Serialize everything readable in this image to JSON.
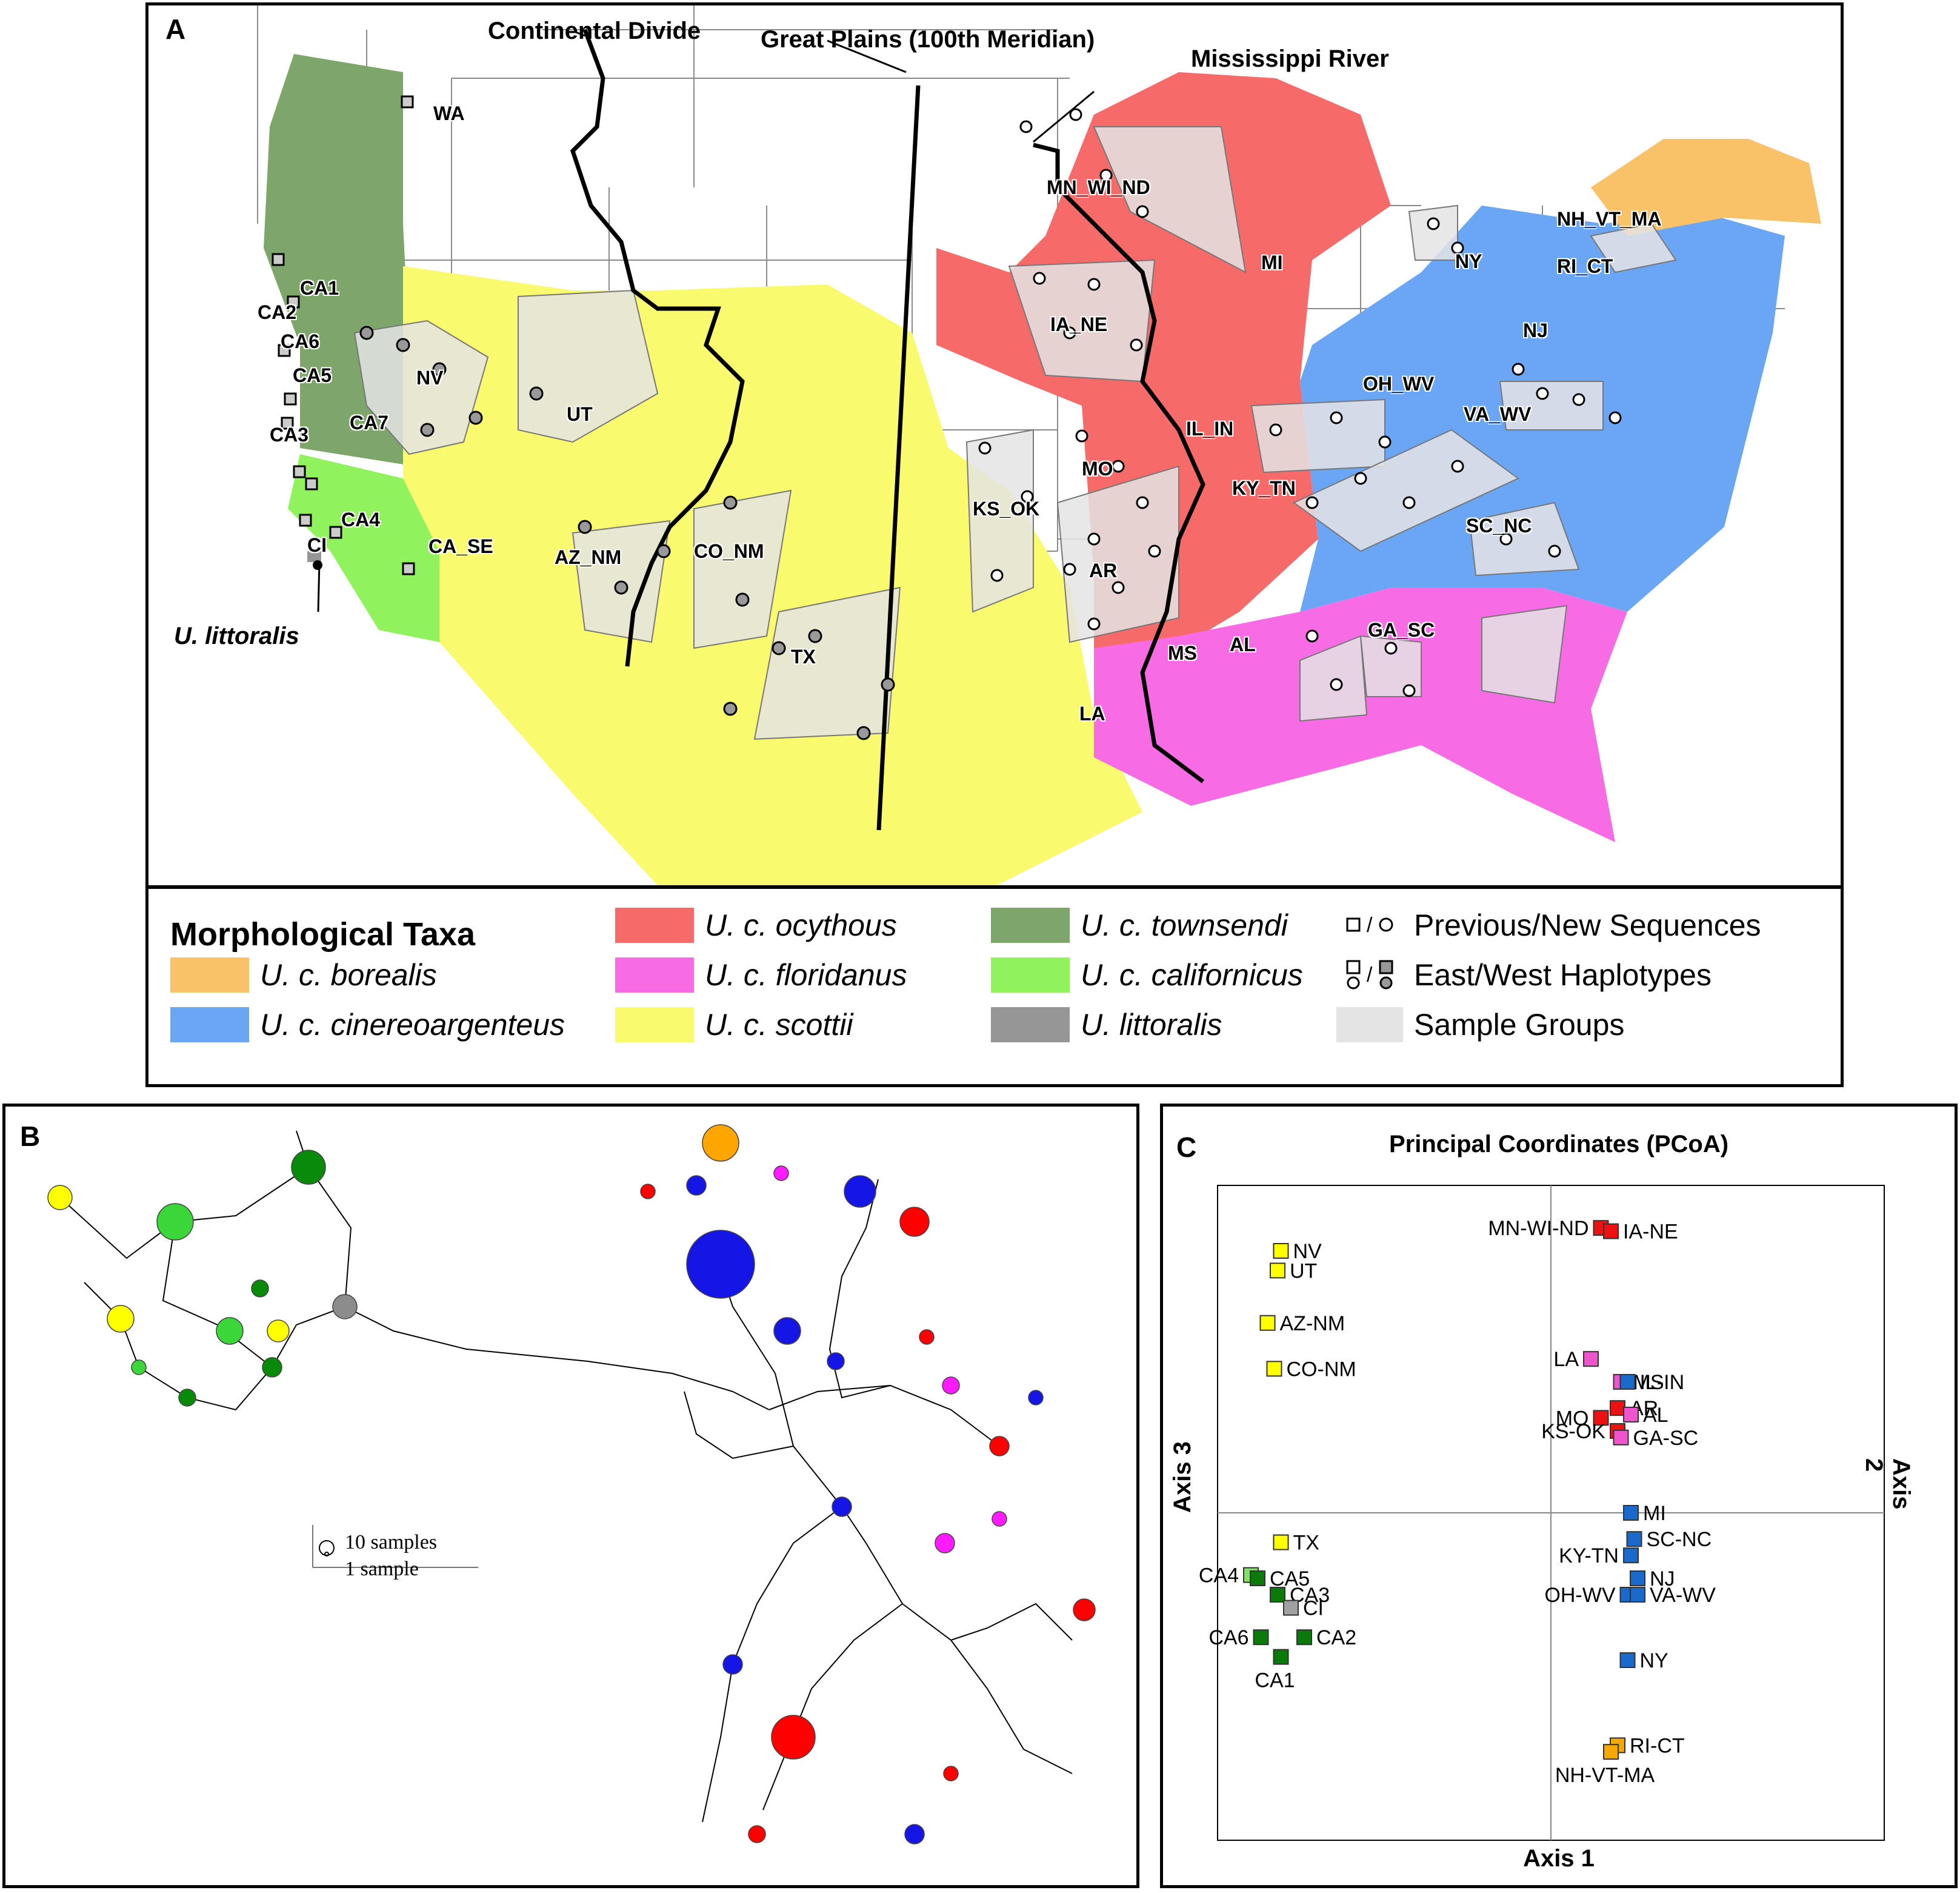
{
  "panel_a": {
    "letter": "A",
    "labels": {
      "continental_divide": "Continental Divide",
      "great_plains": "Great Plains (100th Meridian)",
      "mississippi": "Mississippi River",
      "littoralis": "U. littoralis"
    },
    "sample_groups": [
      "WA",
      "CA1",
      "CA2",
      "CA6",
      "CA5",
      "CA3",
      "CA7",
      "CA4",
      "CI",
      "NV",
      "UT",
      "CA_SE",
      "AZ_NM",
      "CO_NM",
      "TX",
      "MN_WI_ND",
      "IA_NE",
      "KS_OK",
      "MO",
      "AR",
      "LA",
      "MS",
      "AL",
      "GA_SC",
      "MI",
      "IL_IN",
      "KY_TN",
      "SC_NC",
      "OH_WV",
      "VA_WV",
      "NY",
      "NH_VT_MA",
      "RI_CT",
      "NJ"
    ],
    "colors": {
      "borealis": "#fac268",
      "cinereoargenteus": "#6ba6f5",
      "ocythous": "#f76a6a",
      "floridanus": "#f76ce4",
      "scottii": "#fafa6e",
      "townsendi": "#7ea66a",
      "californicus": "#90f25c",
      "littoralis": "#969696",
      "sample_group": "#e4e4e4"
    }
  },
  "legend": {
    "title": "Morphological Taxa",
    "items": [
      {
        "label": "U. c. borealis",
        "color": "#fac268"
      },
      {
        "label": "U. c. cinereoargenteus",
        "color": "#6ba6f5"
      },
      {
        "label": "U. c. ocythous",
        "color": "#f76a6a"
      },
      {
        "label": "U. c. floridanus",
        "color": "#f76ce4"
      },
      {
        "label": "U. c. scottii",
        "color": "#fafa6e"
      },
      {
        "label": "U. c. townsendi",
        "color": "#7ea66a"
      },
      {
        "label": "U. c. californicus",
        "color": "#90f25c"
      },
      {
        "label": "U. littoralis",
        "color": "#969696"
      }
    ],
    "symbols": [
      {
        "label": "Previous/New Sequences",
        "icon": "square-slash-circle-icon"
      },
      {
        "label": "East/West Haplotypes",
        "icon": "white-gray-marker-icon"
      },
      {
        "label": "Sample Groups",
        "icon": "gray-swatch-icon",
        "color": "#e4e4e4"
      }
    ]
  },
  "panel_b": {
    "letter": "B",
    "scale_10": "10 samples",
    "scale_1": "1 sample",
    "colors": {
      "yellow": "#ffff00",
      "dark_green": "#0a8a0a",
      "light_green": "#3ad63a",
      "grey": "#8c8c8c",
      "orange": "#ffa500",
      "blue": "#1515e6",
      "red": "#ff0000",
      "magenta": "#ff1aff"
    }
  },
  "panel_c": {
    "letter": "C",
    "title": "Principal Coordinates (PCoA)",
    "xlabel": "Axis 1",
    "ylabel_left": "Axis 3",
    "ylabel_right": "Axis 2"
  },
  "chart_data": {
    "type": "scatter",
    "title": "Principal Coordinates (PCoA)",
    "xlabel": "Axis 1",
    "ylabel": "Axis 3",
    "y2label": "Axis 2",
    "xlim": [
      -1,
      1
    ],
    "ylim": [
      -1,
      1
    ],
    "grid": false,
    "points": [
      {
        "label": "NV",
        "x": -0.81,
        "y": 0.8,
        "color": "#ffff00"
      },
      {
        "label": "UT",
        "x": -0.82,
        "y": 0.74,
        "color": "#ffff00"
      },
      {
        "label": "AZ-NM",
        "x": -0.85,
        "y": 0.58,
        "color": "#ffff00"
      },
      {
        "label": "CO-NM",
        "x": -0.83,
        "y": 0.44,
        "color": "#ffff00"
      },
      {
        "label": "TX",
        "x": -0.81,
        "y": -0.09,
        "color": "#ffff00"
      },
      {
        "label": "CA4",
        "x": -0.9,
        "y": -0.19,
        "color": "#7ce65c"
      },
      {
        "label": "CA5",
        "x": -0.88,
        "y": -0.2,
        "color": "#0a7a0a"
      },
      {
        "label": "CA3",
        "x": -0.82,
        "y": -0.25,
        "color": "#0a7a0a"
      },
      {
        "label": "CI",
        "x": -0.78,
        "y": -0.29,
        "color": "#a0a0a0"
      },
      {
        "label": "CA2",
        "x": -0.74,
        "y": -0.38,
        "color": "#0a7a0a"
      },
      {
        "label": "CA6",
        "x": -0.87,
        "y": -0.38,
        "color": "#0a7a0a"
      },
      {
        "label": "CA1",
        "x": -0.81,
        "y": -0.44,
        "color": "#0a7a0a"
      },
      {
        "label": "MN-WI-ND",
        "x": 0.15,
        "y": 0.87,
        "color": "#ee1111"
      },
      {
        "label": "IA-NE",
        "x": 0.18,
        "y": 0.86,
        "color": "#ee1111"
      },
      {
        "label": "LA",
        "x": 0.12,
        "y": 0.47,
        "color": "#ee55cc"
      },
      {
        "label": "MS",
        "x": 0.21,
        "y": 0.4,
        "color": "#ee55cc"
      },
      {
        "label": "IL-IN",
        "x": 0.23,
        "y": 0.4,
        "color": "#1a6acc"
      },
      {
        "label": "AR",
        "x": 0.2,
        "y": 0.32,
        "color": "#ee1111"
      },
      {
        "label": "AL",
        "x": 0.24,
        "y": 0.3,
        "color": "#ee55cc"
      },
      {
        "label": "MO",
        "x": 0.15,
        "y": 0.29,
        "color": "#ee1111"
      },
      {
        "label": "KS-OK",
        "x": 0.2,
        "y": 0.25,
        "color": "#ee1111"
      },
      {
        "label": "GA-SC",
        "x": 0.21,
        "y": 0.23,
        "color": "#ee55cc"
      },
      {
        "label": "MI",
        "x": 0.24,
        "y": 0.0,
        "color": "#1a6acc"
      },
      {
        "label": "SC-NC",
        "x": 0.25,
        "y": -0.08,
        "color": "#1a6acc"
      },
      {
        "label": "KY-TN",
        "x": 0.24,
        "y": -0.13,
        "color": "#1a6acc"
      },
      {
        "label": "NJ",
        "x": 0.26,
        "y": -0.2,
        "color": "#1a6acc"
      },
      {
        "label": "OH-WV",
        "x": 0.23,
        "y": -0.25,
        "color": "#1a6acc"
      },
      {
        "label": "VA-WV",
        "x": 0.26,
        "y": -0.25,
        "color": "#1a6acc"
      },
      {
        "label": "NY",
        "x": 0.23,
        "y": -0.45,
        "color": "#1a6acc"
      },
      {
        "label": "RI-CT",
        "x": 0.2,
        "y": -0.71,
        "color": "#f5a800"
      },
      {
        "label": "NH-VT-MA",
        "x": 0.18,
        "y": -0.73,
        "color": "#f5a800"
      }
    ]
  }
}
